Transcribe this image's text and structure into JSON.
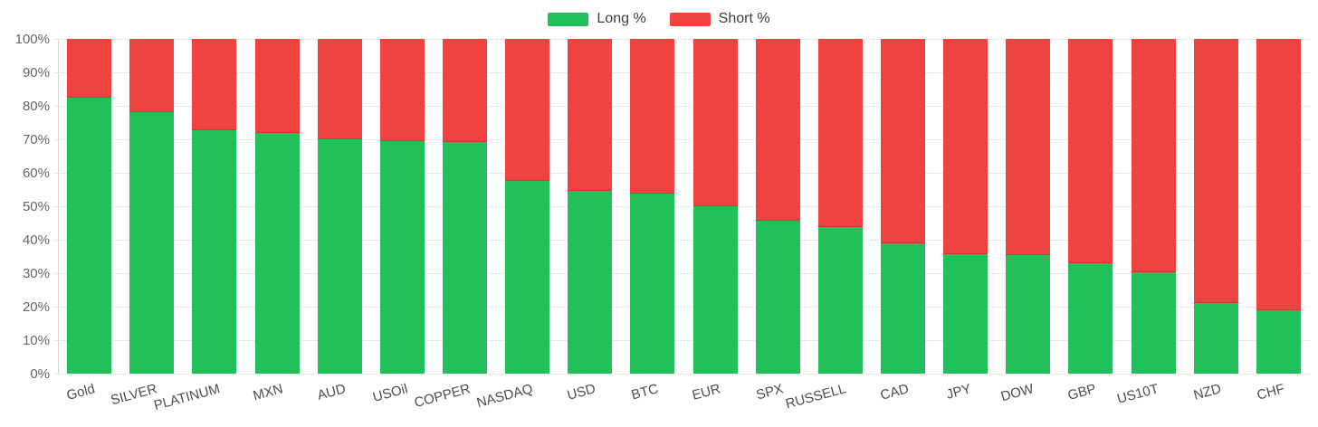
{
  "chart_data": {
    "type": "bar",
    "stacked": true,
    "orientation": "vertical",
    "title": "",
    "xlabel": "",
    "ylabel": "",
    "ylim": [
      0,
      100
    ],
    "grid": true,
    "legend_position": "top-center",
    "y_ticks": [
      "0%",
      "10%",
      "20%",
      "30%",
      "40%",
      "50%",
      "60%",
      "70%",
      "80%",
      "90%",
      "100%"
    ],
    "categories": [
      "Gold",
      "SILVER",
      "PLATINUM",
      "MXN",
      "AUD",
      "USOil",
      "COPPER",
      "NASDAQ",
      "USD",
      "BTC",
      "EUR",
      "SPX",
      "RUSSELL",
      "CAD",
      "JPY",
      "DOW",
      "GBP",
      "US10T",
      "NZD",
      "CHF"
    ],
    "series": [
      {
        "name": "Long %",
        "color": "#23bf5b",
        "values": [
          82.4,
          78.0,
          72.6,
          72.0,
          70.0,
          69.5,
          69.3,
          57.6,
          54.6,
          53.8,
          50.0,
          45.7,
          43.8,
          38.8,
          35.8,
          35.4,
          33.0,
          30.3,
          21.1,
          18.8
        ]
      },
      {
        "name": "Short %",
        "color": "#ee4340",
        "values": [
          17.6,
          22.0,
          27.4,
          28.0,
          30.0,
          30.5,
          30.7,
          42.4,
          45.4,
          46.2,
          50.0,
          54.3,
          56.2,
          61.2,
          64.2,
          64.6,
          67.0,
          69.7,
          78.9,
          81.2
        ]
      }
    ]
  },
  "colors": {
    "background": "#ffffff",
    "grid": "#e8e8e8",
    "axis": "#d6d6d6",
    "y_tick_text": "#666666",
    "category_text": "#4d4d4d",
    "legend_text": "#3d3d3d"
  }
}
